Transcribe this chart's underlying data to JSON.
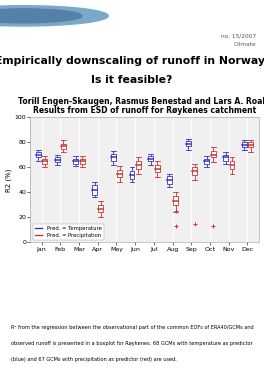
{
  "title": "Results from ESD of runoff for Røykenes catchment",
  "ylabel": "R2 (%)",
  "months": [
    "Jan",
    "Feb",
    "Mar",
    "Apr",
    "May",
    "Jun",
    "Jul",
    "Aug",
    "Sep",
    "Oct",
    "Nov",
    "Dec"
  ],
  "ylim": [
    0,
    100
  ],
  "yticks": [
    0,
    20,
    40,
    60,
    80,
    100
  ],
  "blue_median": [
    70,
    66,
    65,
    42,
    68,
    54,
    67,
    50,
    79,
    65,
    68,
    78
  ],
  "blue_q1": [
    68,
    64,
    63,
    38,
    65,
    51,
    65,
    47,
    77,
    63,
    65,
    76
  ],
  "blue_q3": [
    72,
    68,
    67,
    46,
    71,
    57,
    69,
    53,
    81,
    67,
    70,
    80
  ],
  "blue_whislo": [
    65,
    62,
    61,
    36,
    62,
    48,
    62,
    44,
    74,
    60,
    63,
    74
  ],
  "blue_whishi": [
    74,
    70,
    69,
    48,
    73,
    60,
    71,
    55,
    83,
    69,
    72,
    82
  ],
  "red_median": [
    65,
    77,
    65,
    27,
    55,
    62,
    59,
    33,
    57,
    70,
    62,
    78
  ],
  "red_q1": [
    63,
    75,
    63,
    24,
    52,
    59,
    56,
    30,
    54,
    68,
    59,
    76
  ],
  "red_q3": [
    67,
    79,
    67,
    30,
    58,
    65,
    62,
    37,
    60,
    73,
    65,
    80
  ],
  "red_whislo": [
    60,
    72,
    60,
    20,
    48,
    55,
    52,
    24,
    50,
    64,
    55,
    72
  ],
  "red_whishi": [
    69,
    82,
    69,
    33,
    61,
    68,
    65,
    40,
    63,
    76,
    68,
    82
  ],
  "red_outliers": {
    "7": [
      25,
      13
    ],
    "8": [
      15
    ],
    "9": [
      13
    ]
  },
  "blue_color": "#3333cc",
  "red_color": "#cc3333",
  "header_color": "#5580a8",
  "plot_bg": "#f0f0f0",
  "main_title_line1": "Empirically downscaling of runoff in Norway;",
  "main_title_line2": "Is it feasible?",
  "authors": "Torill Engen-Skaugen, Rasmus Benestad and Lars A. Roald",
  "report_no": "no. 15/2007",
  "report_category": "Climate",
  "footer_line1": "R² from the regression between the observational part of the common EOFs of ERA40/GCMs and",
  "footer_line2": "observed runoff is presented in a boxplot for Røykenes. 68 GCMs with temperature as predictor",
  "footer_line3": "(blue) and 67 GCMs with precipitation as predictor (red) are used."
}
